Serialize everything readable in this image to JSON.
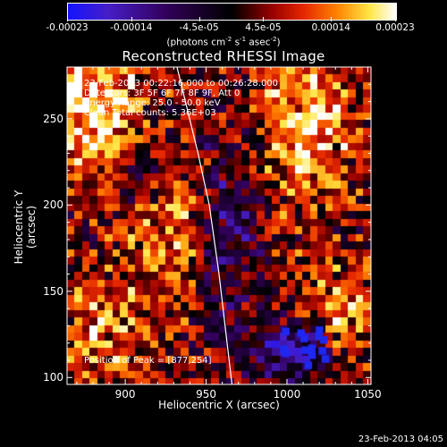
{
  "colorbar": {
    "tick_labels": [
      "-0.00023",
      "-0.00014",
      "-4.5e-05",
      "4.5e-05",
      "0.00014",
      "0.00023"
    ],
    "tick_values": [
      -0.00023,
      -0.00014,
      -4.5e-05,
      4.5e-05,
      0.00014,
      0.00023
    ],
    "range": [
      -0.00023,
      0.00023
    ],
    "units_text": "(photons cm",
    "units_exp1": "-2",
    "units_mid": " s",
    "units_exp2": "-1",
    "units_mid2": " asec",
    "units_exp3": "-2",
    "units_close": ")"
  },
  "chart_data": {
    "type": "heatmap",
    "title": "Reconstructed RHESSI Image",
    "xlabel": "Heliocentric X (arcsec)",
    "ylabel": "Heliocentric Y (arcsec)",
    "xlim": [
      864,
      1052
    ],
    "ylim": [
      96,
      280
    ],
    "x_ticks": [
      900,
      950,
      1000,
      1050
    ],
    "y_ticks": [
      100,
      150,
      200,
      250
    ],
    "x_tick_labels": [
      "900",
      "950",
      "1000",
      "1050"
    ],
    "y_tick_labels": [
      "100",
      "150",
      "200",
      "250"
    ],
    "info_lines": [
      "23-Feb-2013 00:22:16.000 to 00:26:28.000",
      "Detectors: 3F 5F 6F 7F 8F 9F, Att 0",
      "Energy Range: 25.0 - 50.0 keV",
      "Clean     Total counts: 5.36E+03"
    ],
    "peak_label": "Position of Peak = [877,254]",
    "peak_position": [
      877,
      254
    ],
    "limb_curve": [
      [
        932,
        280
      ],
      [
        945,
        230
      ],
      [
        952,
        200
      ],
      [
        958,
        160
      ],
      [
        963,
        120
      ],
      [
        966,
        96
      ]
    ]
  },
  "footer": {
    "date": "23-Feb-2013 04:05"
  },
  "colors": {
    "background": "#000000",
    "text": "#ffffff",
    "limb": "#ffffff"
  }
}
